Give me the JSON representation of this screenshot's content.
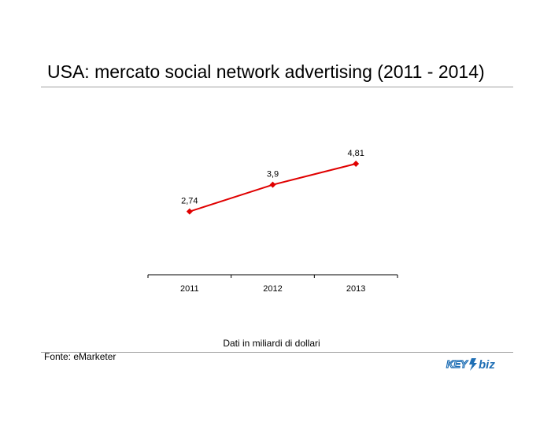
{
  "page": {
    "title": "USA: mercato social network advertising (2011 - 2014)",
    "caption": "Dati in miliardi di dollari",
    "source": "Fonte: eMarketer",
    "logo_text": "KEY4biz"
  },
  "colors": {
    "series": "#e00000",
    "logo": "#1f6fb5",
    "rule": "#a0a0a0"
  },
  "chart_data": {
    "type": "line",
    "categories": [
      "2011",
      "2012",
      "2013"
    ],
    "series": [
      {
        "values": [
          2.74,
          3.9,
          4.81
        ],
        "labels": [
          "2,74",
          "3,9",
          "4,81"
        ]
      }
    ],
    "ylim": [
      0,
      7
    ],
    "grid": false,
    "legend": "none",
    "marker": "diamond"
  }
}
